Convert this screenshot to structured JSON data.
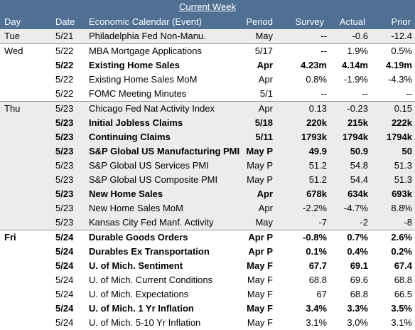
{
  "title": "Current Week",
  "headers": {
    "day": "Day",
    "date": "Date",
    "event": "Economic Calendar (Event)",
    "period": "Period",
    "survey": "Survey",
    "actual": "Actual",
    "prior": "Prior"
  },
  "days": [
    {
      "day": "Tue",
      "rows": [
        {
          "date": "5/21",
          "event": "Philadelphia Fed Non-Manu.",
          "period": "May",
          "survey": "--",
          "actual": "-0.6",
          "prior": "-12.4"
        }
      ]
    },
    {
      "day": "Wed",
      "rows": [
        {
          "date": "5/22",
          "event": "MBA Mortgage Applications",
          "period": "5/17",
          "survey": "--",
          "actual": "1.9%",
          "prior": "0.5%"
        },
        {
          "date": "5/22",
          "event": "Existing Home Sales",
          "period": "Apr",
          "survey": "4.23m",
          "actual": "4.14m",
          "prior": "4.19m"
        },
        {
          "date": "5/22",
          "event": "Existing Home Sales MoM",
          "period": "Apr",
          "survey": "0.8%",
          "actual": "-1.9%",
          "prior": "-4.3%"
        },
        {
          "date": "5/22",
          "event": "FOMC Meeting Minutes",
          "period": "5/1",
          "survey": "--",
          "actual": "--",
          "prior": "--"
        }
      ]
    },
    {
      "day": "Thu",
      "rows": [
        {
          "date": "5/23",
          "event": "Chicago Fed Nat Activity Index",
          "period": "Apr",
          "survey": "0.13",
          "actual": "-0.23",
          "prior": "0.15"
        },
        {
          "date": "5/23",
          "event": "Initial Jobless Claims",
          "period": "5/18",
          "survey": "220k",
          "actual": "215k",
          "prior": "222k"
        },
        {
          "date": "5/23",
          "event": "Continuing Claims",
          "period": "5/11",
          "survey": "1793k",
          "actual": "1794k",
          "prior": "1794k"
        },
        {
          "date": "5/23",
          "event": "S&P Global US Manufacturing PMI",
          "period": "May P",
          "survey": "49.9",
          "actual": "50.9",
          "prior": "50"
        },
        {
          "date": "5/23",
          "event": "S&P Global US Services PMI",
          "period": "May P",
          "survey": "51.2",
          "actual": "54.8",
          "prior": "51.3"
        },
        {
          "date": "5/23",
          "event": "S&P Global US Composite PMI",
          "period": "May P",
          "survey": "51.2",
          "actual": "54.4",
          "prior": "51.3"
        },
        {
          "date": "5/23",
          "event": "New Home Sales",
          "period": "Apr",
          "survey": "678k",
          "actual": "634k",
          "prior": "693k"
        },
        {
          "date": "5/23",
          "event": "New Home Sales MoM",
          "period": "Apr",
          "survey": "-2.2%",
          "actual": "-4.7%",
          "prior": "8.8%"
        },
        {
          "date": "5/23",
          "event": "Kansas City Fed Manf. Activity",
          "period": "May",
          "survey": "-7",
          "actual": "-2",
          "prior": "-8"
        }
      ]
    },
    {
      "day": "Fri",
      "rows": [
        {
          "date": "5/24",
          "event": "Durable Goods Orders",
          "period": "Apr P",
          "survey": "-0.8%",
          "actual": "0.7%",
          "prior": "2.6%"
        },
        {
          "date": "5/24",
          "event": "Durables Ex Transportation",
          "period": "Apr P",
          "survey": "0.1%",
          "actual": "0.4%",
          "prior": "0.2%"
        },
        {
          "date": "5/24",
          "event": "U. of Mich. Sentiment",
          "period": "May F",
          "survey": "67.7",
          "actual": "69.1",
          "prior": "67.4"
        },
        {
          "date": "5/24",
          "event": "U. of Mich. Current Conditions",
          "period": "May F",
          "survey": "68.8",
          "actual": "69.6",
          "prior": "68.8"
        },
        {
          "date": "5/24",
          "event": "U. of Mich. Expectations",
          "period": "May F",
          "survey": "67",
          "actual": "68.8",
          "prior": "66.5"
        },
        {
          "date": "5/24",
          "event": "U. of Mich. 1 Yr Inflation",
          "period": "May F",
          "survey": "3.4%",
          "actual": "3.3%",
          "prior": "3.5%"
        },
        {
          "date": "5/24",
          "event": "U. of Mich. 5-10 Yr Inflation",
          "period": "May F",
          "survey": "3.1%",
          "actual": "3.0%",
          "prior": "3.1%"
        }
      ]
    }
  ]
}
